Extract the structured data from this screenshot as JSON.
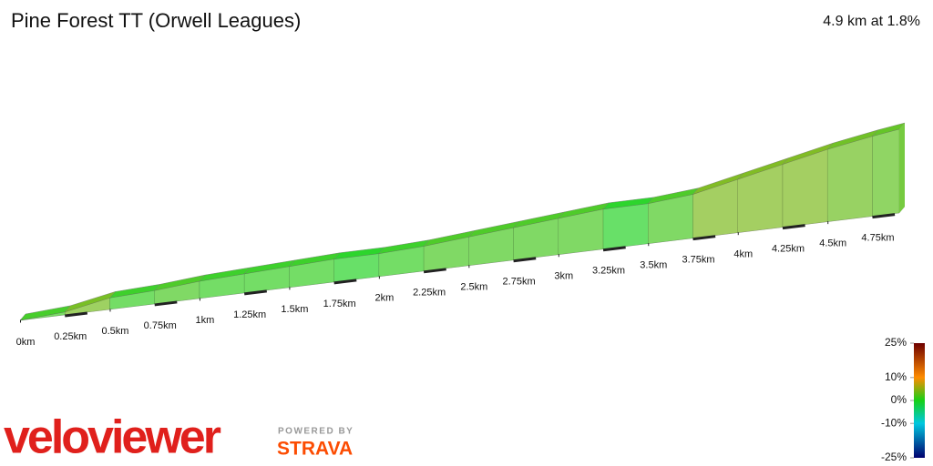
{
  "chart_data": {
    "type": "profile",
    "title": "Pine Forest TT (Orwell Leagues)",
    "subtitle": "4.9 km at 1.8%",
    "x": [
      0,
      0.25,
      0.5,
      0.75,
      1,
      1.25,
      1.5,
      1.75,
      2,
      2.25,
      2.5,
      2.75,
      3,
      3.25,
      3.5,
      3.75,
      4,
      4.25,
      4.5,
      4.75,
      4.9
    ],
    "values": [
      0,
      3,
      12,
      14,
      18,
      20,
      22,
      24,
      24,
      26,
      30,
      34,
      38,
      42,
      42,
      46,
      56,
      66,
      76,
      84,
      88
    ],
    "xlim": [
      0,
      4.9
    ],
    "ylim": [
      0,
      88
    ],
    "xticks": [
      {
        "value": 0,
        "label": "0km"
      },
      {
        "value": 0.25,
        "label": "0.25km"
      },
      {
        "value": 0.5,
        "label": "0.5km"
      },
      {
        "value": 0.75,
        "label": "0.75km"
      },
      {
        "value": 1,
        "label": "1km"
      },
      {
        "value": 1.25,
        "label": "1.25km"
      },
      {
        "value": 1.5,
        "label": "1.5km"
      },
      {
        "value": 1.75,
        "label": "1.75km"
      },
      {
        "value": 2,
        "label": "2km"
      },
      {
        "value": 2.25,
        "label": "2.25km"
      },
      {
        "value": 2.5,
        "label": "2.5km"
      },
      {
        "value": 2.75,
        "label": "2.75km"
      },
      {
        "value": 3,
        "label": "3km"
      },
      {
        "value": 3.25,
        "label": "3.25km"
      },
      {
        "value": 3.5,
        "label": "3.5km"
      },
      {
        "value": 3.75,
        "label": "3.75km"
      },
      {
        "value": 4,
        "label": "4km"
      },
      {
        "value": 4.25,
        "label": "4.25km"
      },
      {
        "value": 4.5,
        "label": "4.5km"
      },
      {
        "value": 4.75,
        "label": "4.75km"
      }
    ],
    "colorscale": [
      {
        "value": 25,
        "label": "25%",
        "color": "#6e0000"
      },
      {
        "value": 10,
        "label": "10%",
        "color": "#ff8c00"
      },
      {
        "value": 0,
        "label": "0%",
        "color": "#16d016"
      },
      {
        "value": -10,
        "label": "-10%",
        "color": "#00c8e0"
      },
      {
        "value": -25,
        "label": "-25%",
        "color": "#00006e"
      }
    ],
    "logo": "veloviewer",
    "powered_by": "POWERED BY",
    "brand": "STRAVA"
  }
}
